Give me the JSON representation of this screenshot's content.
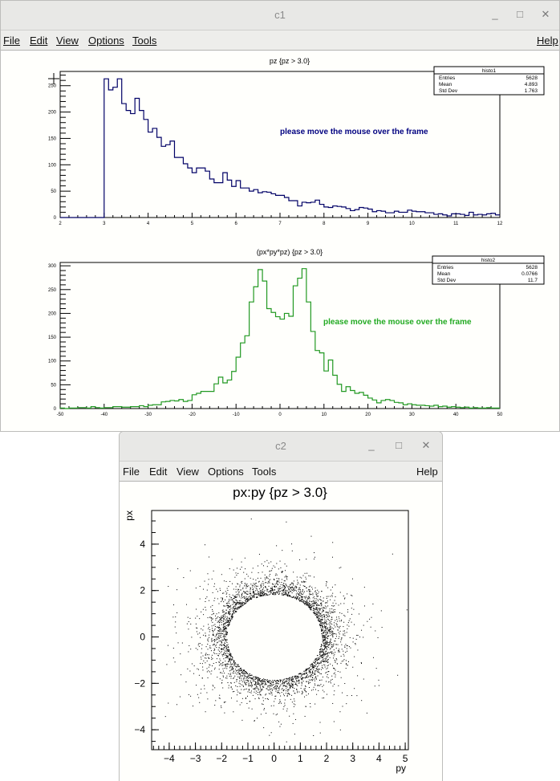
{
  "c1": {
    "title": "c1",
    "controls": {
      "minimize": "_",
      "maximize": "□",
      "close": "✕"
    },
    "menu": [
      "File",
      "Edit",
      "View",
      "Options",
      "Tools"
    ],
    "help": "Help",
    "histo1": {
      "stats": {
        "name": "histo1",
        "rows": [
          {
            "label": "Entries",
            "value": "5628"
          },
          {
            "label": "Mean",
            "value": "4.893"
          },
          {
            "label": "Std Dev",
            "value": "1.763"
          }
        ]
      },
      "message": "please move the mouse over the frame",
      "color": "#000066",
      "msg_color": "#000080"
    },
    "histo2": {
      "stats": {
        "name": "histo2",
        "rows": [
          {
            "label": "Entries",
            "value": "5628"
          },
          {
            "label": "Mean",
            "value": "0.0766"
          },
          {
            "label": "Std Dev",
            "value": "11.7"
          }
        ]
      },
      "message": "please move the mouse over the frame",
      "color": "#229922",
      "msg_color": "#22aa22"
    }
  },
  "c2": {
    "title": "c2",
    "controls": {
      "minimize": "_",
      "maximize": "□",
      "close": "✕"
    },
    "menu": [
      "File",
      "Edit",
      "View",
      "Options",
      "Tools"
    ],
    "help": "Help"
  },
  "chart_data": [
    {
      "type": "bar",
      "title": "pz {pz > 3.0}",
      "xlim": [
        2,
        12
      ],
      "ylim": [
        0,
        277
      ],
      "xticks": [
        "2",
        "3",
        "4",
        "5",
        "6",
        "7",
        "8",
        "9",
        "10",
        "11",
        "12"
      ],
      "yticks": [
        "0",
        "50",
        "100",
        "150",
        "200",
        "250"
      ],
      "bin_start": 2,
      "bin_width": 0.1,
      "values": [
        0,
        0,
        0,
        0,
        0,
        0,
        0,
        0,
        0,
        0,
        263,
        242,
        247,
        263,
        216,
        203,
        197,
        226,
        203,
        186,
        162,
        169,
        152,
        135,
        138,
        145,
        114,
        114,
        102,
        94,
        85,
        94,
        94,
        88,
        73,
        66,
        66,
        85,
        71,
        59,
        70,
        56,
        56,
        50,
        53,
        47,
        49,
        48,
        45,
        42,
        42,
        38,
        32,
        32,
        22,
        29,
        28,
        29,
        33,
        25,
        20,
        19,
        22,
        21,
        20,
        17,
        13,
        15,
        19,
        18,
        16,
        11,
        13,
        12,
        9,
        9,
        12,
        10,
        10,
        14,
        12,
        11,
        11,
        9,
        9,
        6,
        7,
        5,
        3,
        7,
        7,
        6,
        4,
        10,
        5,
        6,
        5,
        7,
        8,
        5
      ]
    },
    {
      "type": "bar",
      "title": "(px*py*pz) {pz > 3.0}",
      "xlim": [
        -50,
        50
      ],
      "ylim": [
        0,
        307
      ],
      "xticks": [
        "-50",
        "-40",
        "-30",
        "-20",
        "-10",
        "0",
        "10",
        "20",
        "30",
        "40",
        "50"
      ],
      "yticks": [
        "0",
        "50",
        "100",
        "150",
        "200",
        "250",
        "300"
      ],
      "bin_start": -50,
      "bin_width": 1,
      "values": [
        1,
        0,
        1,
        1,
        2,
        2,
        1,
        4,
        2,
        1,
        2,
        2,
        4,
        4,
        3,
        3,
        4,
        4,
        6,
        4,
        7,
        8,
        8,
        14,
        15,
        17,
        16,
        19,
        15,
        17,
        29,
        32,
        36,
        36,
        36,
        52,
        66,
        54,
        60,
        78,
        108,
        138,
        153,
        224,
        256,
        292,
        268,
        210,
        202,
        193,
        188,
        200,
        194,
        258,
        274,
        294,
        224,
        162,
        122,
        117,
        79,
        102,
        70,
        51,
        36,
        46,
        38,
        32,
        34,
        28,
        22,
        18,
        12,
        17,
        19,
        17,
        13,
        12,
        8,
        10,
        8,
        7,
        7,
        6,
        5,
        7,
        4,
        5,
        3,
        4,
        3,
        2,
        3,
        1,
        2,
        1,
        1,
        2,
        1,
        1
      ]
    },
    {
      "type": "scatter",
      "title": "px:py {pz > 3.0}",
      "xlabel": "py",
      "ylabel": "px",
      "xlim": [
        -4.67,
        5.12
      ],
      "ylim": [
        -4.86,
        5.45
      ],
      "xticks": [
        "−4",
        "−3",
        "−2",
        "−1",
        "0",
        "1",
        "2",
        "3",
        "4",
        "5"
      ],
      "yticks": [
        "−4",
        "−2",
        "0",
        "2",
        "4"
      ],
      "color": "#000000"
    }
  ]
}
